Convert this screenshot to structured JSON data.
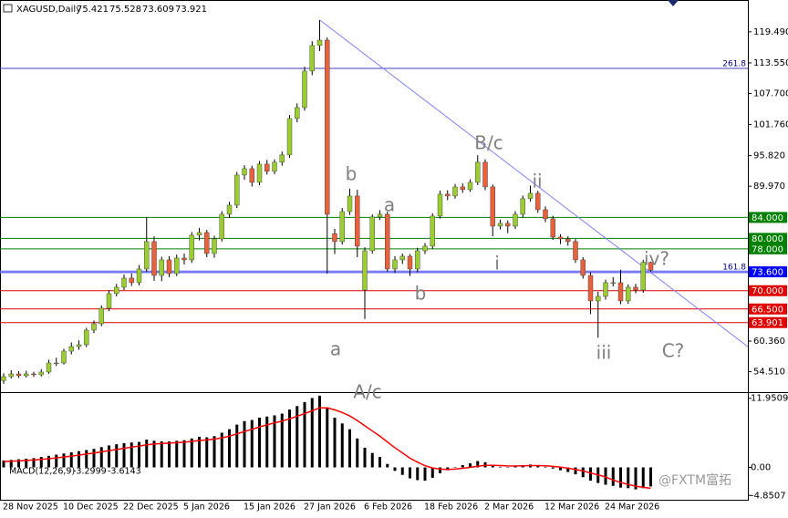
{
  "chart_data": [
    {
      "type": "candlestick",
      "symbol": "XAGUSD,Daily",
      "categories": [
        "28 Nov 2025",
        null,
        null,
        null,
        null,
        null,
        null,
        null,
        "10 Dec 2025",
        null,
        null,
        null,
        null,
        null,
        null,
        null,
        "22 Dec 2025",
        null,
        null,
        null,
        null,
        null,
        null,
        null,
        "5 Jan 2026",
        null,
        null,
        null,
        null,
        null,
        null,
        null,
        "15 Jan 2026",
        null,
        null,
        null,
        null,
        null,
        null,
        null,
        "27 Jan 2026",
        null,
        null,
        null,
        null,
        null,
        null,
        null,
        "6 Feb 2026",
        null,
        null,
        null,
        null,
        null,
        null,
        null,
        "18 Feb 2026",
        null,
        null,
        null,
        null,
        null,
        null,
        null,
        "2 Mar 2026",
        null,
        null,
        null,
        null,
        null,
        null,
        null,
        "12 Mar 2026",
        null,
        null,
        null,
        null,
        null,
        null,
        null,
        "24 Mar 2026",
        null,
        null,
        null,
        null,
        null,
        null
      ],
      "ohlc": [
        [
          52.8,
          54.2,
          52.2,
          53.57
        ],
        [
          53.57,
          54.8,
          53.2,
          54.09
        ],
        [
          54.09,
          54.6,
          53.3,
          53.74
        ],
        [
          53.74,
          54.7,
          53.4,
          54.09
        ],
        [
          54.09,
          54.5,
          53.5,
          53.92
        ],
        [
          53.92,
          55.0,
          53.6,
          54.44
        ],
        [
          54.44,
          56.8,
          54.1,
          56.18
        ],
        [
          56.18,
          57.2,
          55.6,
          56.18
        ],
        [
          56.18,
          58.9,
          55.9,
          58.45
        ],
        [
          58.45,
          60.1,
          57.8,
          59.32
        ],
        [
          59.32,
          60.5,
          58.7,
          59.67
        ],
        [
          59.67,
          62.9,
          59.2,
          62.46
        ],
        [
          62.46,
          64.3,
          61.9,
          63.68
        ],
        [
          63.68,
          67.2,
          63.2,
          66.65
        ],
        [
          66.65,
          70.1,
          66.1,
          69.44
        ],
        [
          69.44,
          71.3,
          68.9,
          70.66
        ],
        [
          70.66,
          73.1,
          70.1,
          72.4
        ],
        [
          72.4,
          73.3,
          70.9,
          71.53
        ],
        [
          71.53,
          74.9,
          71.0,
          74.15
        ],
        [
          74.15,
          84.1,
          73.6,
          79.38
        ],
        [
          79.38,
          80.4,
          71.9,
          72.92
        ],
        [
          72.92,
          76.5,
          71.8,
          75.89
        ],
        [
          75.89,
          76.6,
          72.6,
          73.27
        ],
        [
          73.27,
          76.9,
          72.8,
          76.24
        ],
        [
          76.24,
          77.1,
          75.0,
          75.89
        ],
        [
          75.89,
          81.2,
          75.3,
          80.6
        ],
        [
          80.6,
          82.0,
          79.6,
          81.12
        ],
        [
          81.12,
          81.6,
          76.4,
          77.11
        ],
        [
          77.11,
          80.5,
          76.3,
          79.9
        ],
        [
          79.9,
          85.2,
          79.4,
          84.61
        ],
        [
          84.61,
          87.0,
          83.9,
          86.35
        ],
        [
          86.35,
          92.7,
          85.8,
          92.11
        ],
        [
          92.11,
          94.0,
          91.2,
          93.33
        ],
        [
          93.33,
          93.9,
          89.9,
          90.71
        ],
        [
          90.71,
          94.8,
          90.2,
          94.2
        ],
        [
          94.2,
          95.0,
          92.2,
          92.81
        ],
        [
          92.81,
          95.1,
          92.3,
          94.55
        ],
        [
          94.55,
          96.6,
          93.9,
          95.95
        ],
        [
          95.95,
          103.6,
          95.4,
          102.92
        ],
        [
          102.92,
          105.8,
          102.2,
          105.01
        ],
        [
          105.01,
          112.8,
          104.4,
          111.99
        ],
        [
          111.99,
          117.7,
          111.2,
          116.87
        ],
        [
          116.87,
          121.76,
          115.8,
          117.9
        ],
        [
          117.9,
          118.4,
          73.27,
          84.61
        ],
        [
          80.9,
          81.8,
          77.0,
          79.38
        ],
        [
          79.38,
          85.8,
          78.8,
          85.13
        ],
        [
          85.13,
          89.5,
          84.5,
          88.1
        ],
        [
          88.1,
          89.3,
          76.4,
          78.51
        ],
        [
          70.13,
          78.3,
          64.6,
          77.63
        ],
        [
          77.63,
          84.6,
          77.1,
          84.09
        ],
        [
          84.09,
          85.4,
          83.5,
          84.61
        ],
        [
          84.61,
          85.1,
          73.6,
          74.15
        ],
        [
          74.15,
          76.6,
          73.4,
          75.89
        ],
        [
          75.89,
          77.1,
          75.1,
          76.59
        ],
        [
          76.59,
          77.0,
          72.8,
          74.15
        ],
        [
          74.15,
          78.2,
          73.5,
          77.63
        ],
        [
          77.63,
          79.1,
          77.0,
          78.51
        ],
        [
          78.51,
          84.8,
          78.0,
          84.26
        ],
        [
          84.26,
          89.1,
          83.8,
          88.45
        ],
        [
          88.45,
          89.2,
          87.3,
          88.1
        ],
        [
          88.1,
          90.4,
          87.6,
          89.84
        ],
        [
          89.84,
          90.5,
          88.7,
          89.32
        ],
        [
          89.32,
          91.3,
          88.9,
          90.71
        ],
        [
          90.71,
          95.9,
          90.2,
          94.55
        ],
        [
          94.55,
          95.1,
          89.2,
          89.84
        ],
        [
          89.84,
          90.3,
          80.4,
          82.34
        ],
        [
          82.34,
          83.6,
          81.7,
          82.87
        ],
        [
          82.87,
          83.4,
          81.0,
          82.34
        ],
        [
          82.34,
          85.2,
          81.8,
          84.61
        ],
        [
          84.61,
          88.2,
          84.0,
          87.58
        ],
        [
          87.58,
          90.1,
          87.0,
          88.62
        ],
        [
          88.62,
          89.1,
          84.9,
          85.48
        ],
        [
          85.48,
          86.1,
          83.1,
          83.74
        ],
        [
          83.74,
          84.3,
          79.7,
          80.25
        ],
        [
          80.25,
          80.8,
          78.9,
          79.9
        ],
        [
          79.9,
          80.4,
          78.6,
          79.38
        ],
        [
          79.38,
          79.9,
          75.3,
          75.89
        ],
        [
          75.89,
          76.4,
          72.3,
          72.92
        ],
        [
          72.92,
          73.5,
          65.5,
          68.04
        ],
        [
          68.04,
          69.8,
          61.0,
          68.91
        ],
        [
          68.91,
          72.1,
          68.3,
          71.53
        ],
        [
          71.53,
          72.6,
          70.8,
          71.53
        ],
        [
          71.53,
          74.0,
          67.4,
          68.04
        ],
        [
          68.04,
          71.2,
          67.5,
          70.66
        ],
        [
          70.66,
          71.3,
          69.5,
          70.13
        ],
        [
          70.13,
          75.9,
          69.6,
          75.42
        ],
        [
          75.421,
          75.528,
          73.609,
          73.921
        ]
      ],
      "up_color": "#9acd32",
      "down_color": "#e8603c",
      "ylim": [
        50.6,
        124.7
      ],
      "yticks": [
        {
          "value": 119.49,
          "label": "119.490"
        },
        {
          "value": 113.55,
          "label": "113.550"
        },
        {
          "value": 107.7,
          "label": "107.700"
        },
        {
          "value": 101.76,
          "label": "101.760"
        },
        {
          "value": 95.82,
          "label": "95.820"
        },
        {
          "value": 89.97,
          "label": "89.970"
        },
        {
          "value": 60.36,
          "label": "60.360"
        },
        {
          "value": 54.51,
          "label": "54.510"
        }
      ],
      "levels": [
        {
          "value": 84,
          "label": "84.000",
          "color": "#008000"
        },
        {
          "value": 80,
          "label": "80.000",
          "color": "#008000"
        },
        {
          "value": 78,
          "label": "78.000",
          "color": "#008000"
        },
        {
          "value": 73.6,
          "label": "73.600",
          "color": "#0000ff"
        },
        {
          "value": 70,
          "label": "70.000",
          "color": "#e00000"
        },
        {
          "value": 66.5,
          "label": "66.500",
          "color": "#e00000"
        },
        {
          "value": 63.901,
          "label": "63.901",
          "color": "#e00000"
        }
      ],
      "fib_levels": [
        {
          "ratio": 261.8,
          "price": 112.5
        },
        {
          "ratio": 161.8,
          "price": 73.6
        }
      ],
      "trendline": {
        "x": [
          42,
          98.9
        ],
        "y": [
          121.76,
          59.3
        ],
        "color": "#8080ff"
      },
      "annotations": [
        "a",
        "b",
        "a",
        "b",
        "A/c",
        "B/c",
        "ii",
        "i",
        "iii",
        "iv?",
        "C?"
      ],
      "watermark": "@FXTM富拓"
    },
    {
      "type": "macd",
      "indicator": "MACD(12,26,9)",
      "series": [
        {
          "color": "#000000",
          "values": [
            1.2,
            1.3,
            1.4,
            1.5,
            1.6,
            1.8,
            2.0,
            2.2,
            2.4,
            2.6,
            2.8,
            3.0,
            3.2,
            3.5,
            3.8,
            4.0,
            4.2,
            4.3,
            4.4,
            4.8,
            4.6,
            4.5,
            4.5,
            4.6,
            4.7,
            5.0,
            5.3,
            5.2,
            5.4,
            6.0,
            6.6,
            7.4,
            8.0,
            8.2,
            8.6,
            8.8,
            9.0,
            9.3,
            10.0,
            10.6,
            11.3,
            12.0,
            12.4,
            10.4,
            8.6,
            7.6,
            6.6,
            5.0,
            3.4,
            2.5,
            1.8,
            0.6,
            -0.6,
            -1.3,
            -1.9,
            -2.2,
            -2.3,
            -1.8,
            -1.0,
            -0.5,
            0.0,
            0.4,
            0.7,
            1.1,
            0.9,
            0.4,
            0.1,
            0.0,
            0.2,
            0.4,
            0.5,
            0.3,
            0.1,
            -0.2,
            -0.5,
            -0.8,
            -1.2,
            -1.7,
            -2.3,
            -2.7,
            -3.0,
            -3.2,
            -3.5,
            -3.6,
            -3.8,
            -3.6,
            -3.2999
          ]
        },
        {
          "color": "#ff0000",
          "values": [
            1.0,
            1.06,
            1.13,
            1.2,
            1.28,
            1.38,
            1.5,
            1.64,
            1.79,
            1.95,
            2.12,
            2.3,
            2.48,
            2.68,
            2.9,
            3.1,
            3.3,
            3.5,
            3.68,
            3.9,
            4.04,
            4.13,
            4.2,
            4.28,
            4.36,
            4.49,
            4.65,
            4.76,
            4.89,
            5.1,
            5.4,
            5.8,
            6.2,
            6.6,
            7.0,
            7.36,
            7.7,
            8.0,
            8.4,
            8.84,
            9.3,
            9.8,
            10.3,
            10.3,
            9.96,
            9.5,
            8.9,
            8.1,
            7.2,
            6.3,
            5.4,
            4.4,
            3.4,
            2.5,
            1.6,
            0.9,
            0.3,
            -0.1,
            -0.3,
            -0.35,
            -0.3,
            -0.16,
            0.0,
            0.2,
            0.35,
            0.36,
            0.31,
            0.25,
            0.24,
            0.27,
            0.32,
            0.32,
            0.28,
            0.18,
            0.04,
            -0.13,
            -0.35,
            -0.62,
            -0.96,
            -1.3,
            -1.65,
            -2.2,
            -2.6,
            -2.95,
            -3.25,
            -3.45,
            -3.6143
          ]
        }
      ],
      "ylim": [
        -5.6,
        12.7
      ],
      "yticks": [
        11.9509,
        {
          "value": 0,
          "label": "0.00"
        },
        -4.8507
      ]
    }
  ]
}
